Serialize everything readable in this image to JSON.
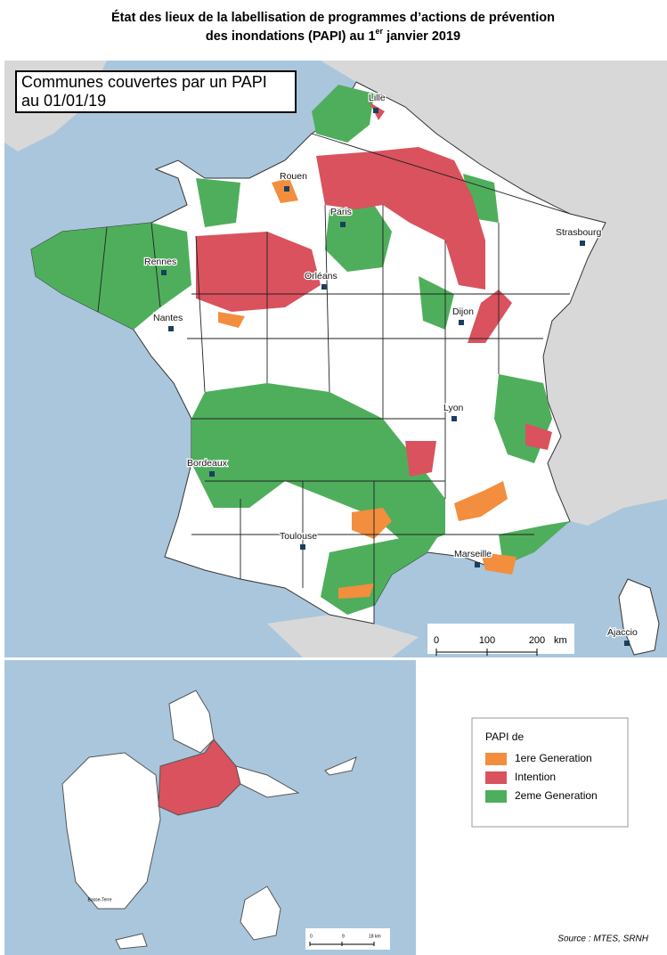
{
  "title": {
    "line1": "État des lieux de la labellisation de programmes d’actions de prévention",
    "line2_before": "des inondations (PAPI) au 1",
    "line2_sup": "er",
    "line2_after": " janvier 2019"
  },
  "map_title": [
    "Communes couvertes par un PAPI",
    "au 01/01/19"
  ],
  "cities": [
    "Lille",
    "Rouen",
    "Paris",
    "Strasbourg",
    "Rennes",
    "Orléans",
    "Nantes",
    "Dijon",
    "Lyon",
    "Bordeaux",
    "Toulouse",
    "Marseille",
    "Ajaccio"
  ],
  "scale": {
    "labels": [
      "0",
      "100",
      "200"
    ],
    "unit": "km"
  },
  "legend": {
    "title": "PAPI de",
    "items": [
      {
        "label": "1ere Generation",
        "color": "#f28e3e"
      },
      {
        "label": "Intention",
        "color": "#d9525e"
      },
      {
        "label": "2eme Generation",
        "color": "#4fae5c"
      }
    ]
  },
  "inset_label": "Basse-Terre",
  "inset_scale": [
    "0",
    "9",
    "18 km"
  ],
  "source": "Source : MTES, SRNH"
}
